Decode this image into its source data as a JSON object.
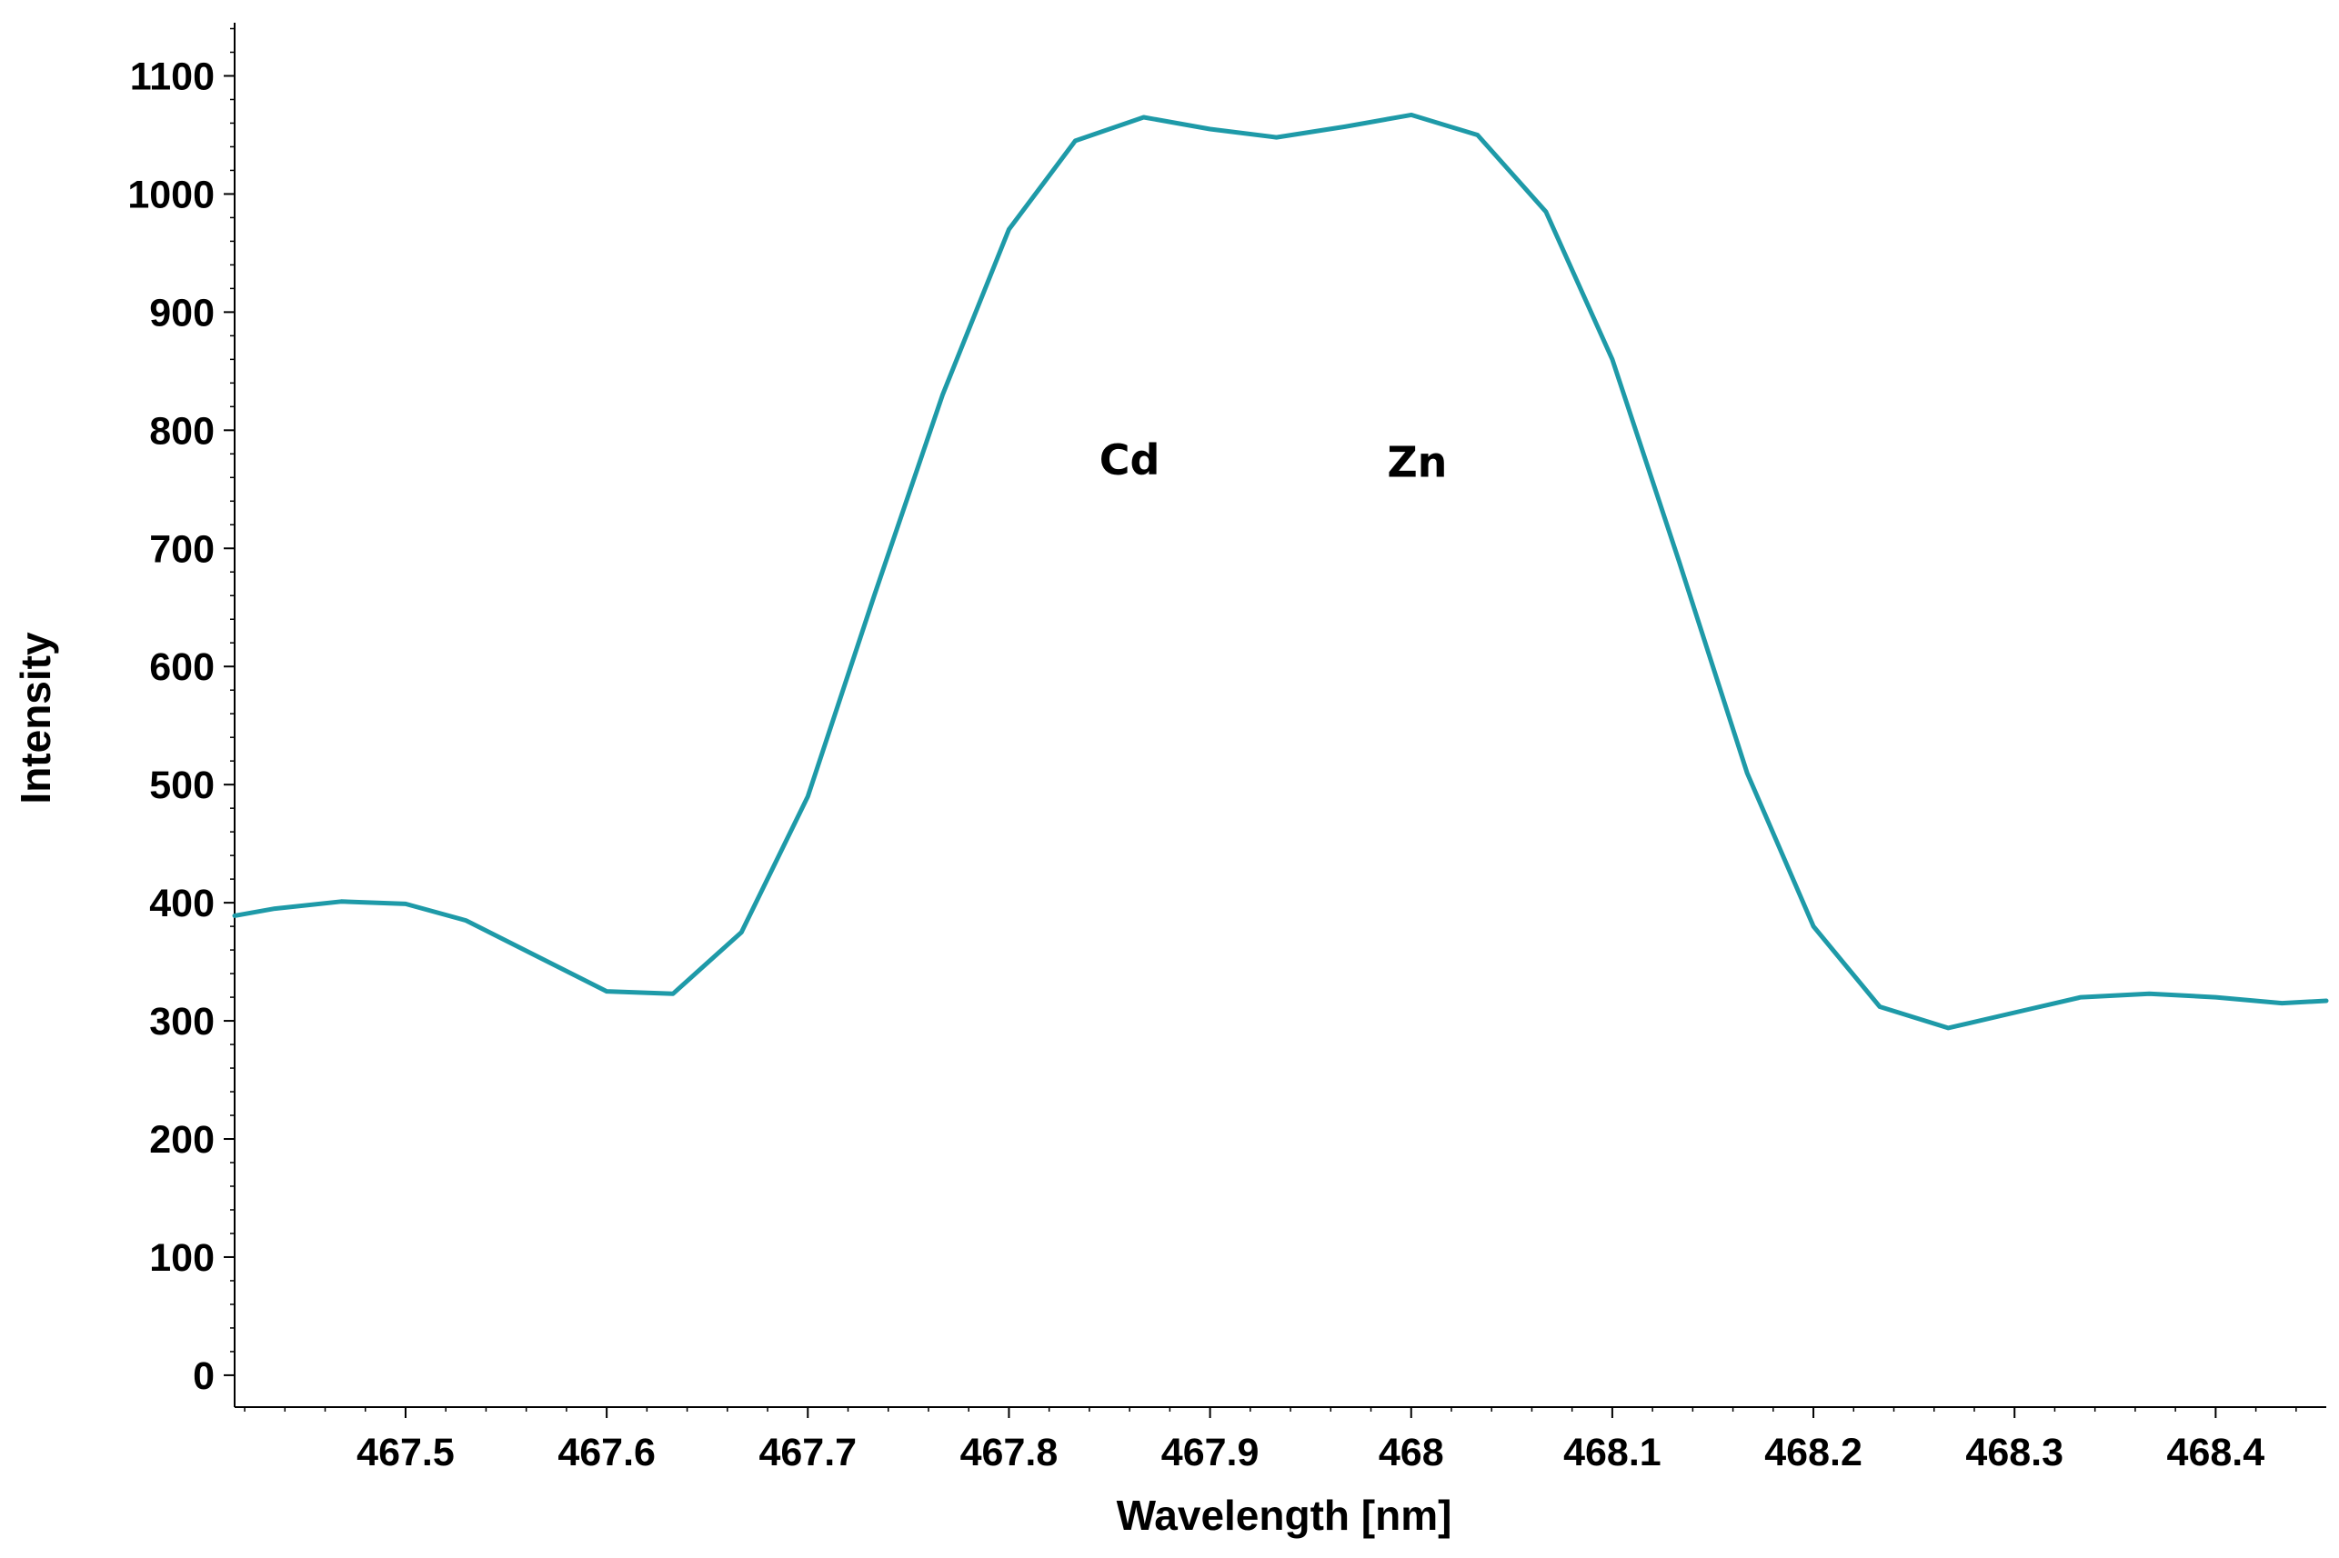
{
  "chart_data": {
    "type": "line",
    "title": "",
    "xlabel": "Wavelength [nm]",
    "ylabel": "Intensity",
    "xlim": [
      467.415,
      468.455
    ],
    "ylim": [
      -27,
      1145
    ],
    "x_ticks": [
      467.5,
      467.6,
      467.7,
      467.8,
      467.9,
      468.0,
      468.1,
      468.2,
      468.3,
      468.4
    ],
    "x_tick_labels": [
      "467.5",
      "467.6",
      "467.7",
      "467.8",
      "467.9",
      "468",
      "468.1",
      "468.2",
      "468.3",
      "468.4"
    ],
    "y_ticks": [
      0,
      100,
      200,
      300,
      400,
      500,
      600,
      700,
      800,
      900,
      1000,
      1100
    ],
    "y_tick_labels": [
      "0",
      "100",
      "200",
      "300",
      "400",
      "500",
      "600",
      "700",
      "800",
      "900",
      "1000",
      "1100"
    ],
    "grid": false,
    "legend": "none",
    "line_color": "#1e9aa8",
    "series": [
      {
        "x": [
          467.415,
          467.435,
          467.468,
          467.5,
          467.53,
          467.565,
          467.6,
          467.633,
          467.667,
          467.7,
          467.733,
          467.767,
          467.8,
          467.833,
          467.867,
          467.9,
          467.933,
          467.967,
          468.0,
          468.033,
          468.067,
          468.1,
          468.133,
          468.167,
          468.2,
          468.233,
          468.267,
          468.3,
          468.333,
          468.367,
          468.4,
          468.433,
          468.455
        ],
        "y": [
          389,
          395,
          401,
          399,
          385,
          355,
          325,
          323,
          375,
          490,
          660,
          830,
          970,
          1045,
          1065,
          1055,
          1048,
          1057,
          1067,
          1050,
          985,
          860,
          690,
          510,
          380,
          312,
          294,
          307,
          320,
          323,
          320,
          315,
          317
        ]
      }
    ],
    "annotations": [
      {
        "text": "Cd",
        "x": 467.86,
        "y": 775
      },
      {
        "text": "Zn",
        "x": 468.003,
        "y": 773
      }
    ]
  }
}
